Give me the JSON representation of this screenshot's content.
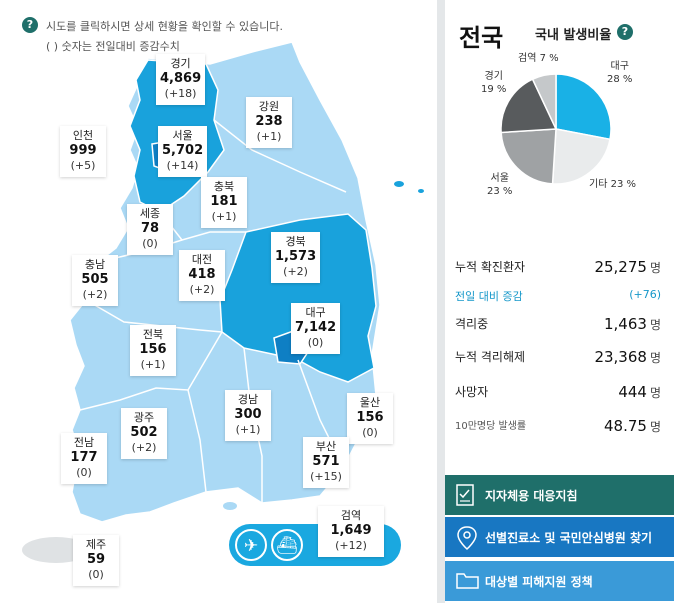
{
  "hint": {
    "line1": "시도를 클릭하시면 상세 현황을 확인할 수 있습니다.",
    "line2": "( ) 숫자는 전일대비 증감수치",
    "help_glyph": "?"
  },
  "regions": [
    {
      "id": "gyeonggi",
      "name": "경기",
      "value": "4,869",
      "delta": "(+18)"
    },
    {
      "id": "gangwon",
      "name": "강원",
      "value": "238",
      "delta": "(+1)"
    },
    {
      "id": "incheon",
      "name": "인천",
      "value": "999",
      "delta": "(+5)"
    },
    {
      "id": "seoul",
      "name": "서울",
      "value": "5,702",
      "delta": "(+14)"
    },
    {
      "id": "chungbuk",
      "name": "충북",
      "value": "181",
      "delta": "(+1)"
    },
    {
      "id": "sejong",
      "name": "세종",
      "value": "78",
      "delta": "(0)"
    },
    {
      "id": "chungnam",
      "name": "충남",
      "value": "505",
      "delta": "(+2)"
    },
    {
      "id": "daejeon",
      "name": "대전",
      "value": "418",
      "delta": "(+2)"
    },
    {
      "id": "gyeongbuk",
      "name": "경북",
      "value": "1,573",
      "delta": "(+2)"
    },
    {
      "id": "daegu",
      "name": "대구",
      "value": "7,142",
      "delta": "(0)"
    },
    {
      "id": "jeonbuk",
      "name": "전북",
      "value": "156",
      "delta": "(+1)"
    },
    {
      "id": "gyeongnam",
      "name": "경남",
      "value": "300",
      "delta": "(+1)"
    },
    {
      "id": "ulsan",
      "name": "울산",
      "value": "156",
      "delta": "(0)"
    },
    {
      "id": "gwangju",
      "name": "광주",
      "value": "502",
      "delta": "(+2)"
    },
    {
      "id": "jeonnam",
      "name": "전남",
      "value": "177",
      "delta": "(0)"
    },
    {
      "id": "busan",
      "name": "부산",
      "value": "571",
      "delta": "(+15)"
    },
    {
      "id": "jeju",
      "name": "제주",
      "value": "59",
      "delta": "(0)"
    },
    {
      "id": "quarantine",
      "name": "검역",
      "value": "1,649",
      "delta": "(+12)"
    }
  ],
  "transport": {
    "plane_glyph": "✈",
    "ship_glyph": "⛴"
  },
  "national": {
    "title": "전국",
    "ratio_label": "국내 발생비율",
    "help_glyph": "?"
  },
  "pie": {
    "slices": [
      {
        "name": "대구",
        "pct": 28,
        "label": "28 %",
        "color": "#19b1e6"
      },
      {
        "name": "기타",
        "pct": 23,
        "label": "기타 23 %",
        "color": "#e9ebec"
      },
      {
        "name": "서울",
        "pct": 23,
        "label": "23 %",
        "color": "#9fa2a4"
      },
      {
        "name": "경기",
        "pct": 19,
        "label": "19 %",
        "color": "#585b5d"
      },
      {
        "name": "검역",
        "pct": 7,
        "label": "7 %",
        "color": "#c5c8ca"
      }
    ]
  },
  "stats": {
    "confirmed_label": "누적 확진환자",
    "confirmed_value": "25,275",
    "unit": "명",
    "increase_label": "전일 대비 증감",
    "increase_value": "(+76)",
    "isolating_label": "격리중",
    "isolating_value": "1,463",
    "released_label": "누적 격리해제",
    "released_value": "23,368",
    "deaths_label": "사망자",
    "deaths_value": "444",
    "rate_label": "10만명당 발생률",
    "rate_value": "48.75"
  },
  "buttons": {
    "guide": "지자체용 대응지침",
    "clinic": "선별진료소 및 국민안심병원 찾기",
    "support": "대상별 피해지원 정책"
  },
  "colors": {
    "map_light": "#aad9f5",
    "map_dark": "#19a2dc",
    "daegu": "#0e7fc4",
    "btn_guide": "#1f6f6a",
    "btn_clinic": "#1877c2",
    "btn_support": "#3a9ad8"
  }
}
